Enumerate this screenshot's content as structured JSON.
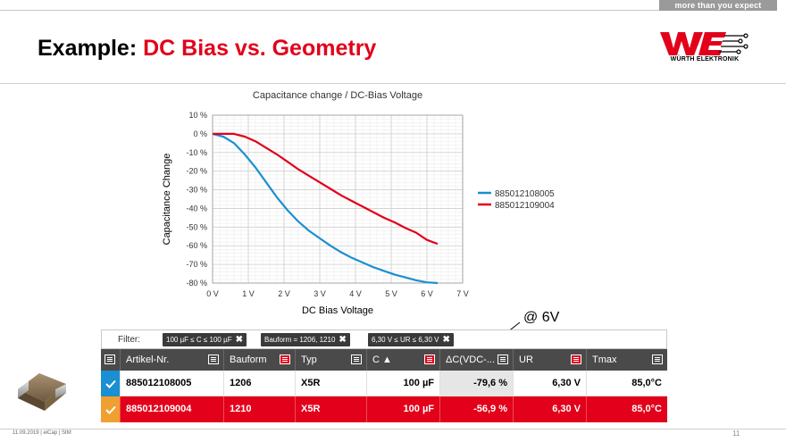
{
  "header": {
    "tagline": "more than you expect",
    "title_prefix": "Example: ",
    "title_accent": "DC Bias vs. Geometry",
    "logo_text": "WÜRTH ELEKTRONIK",
    "accent_color": "#e2001a"
  },
  "chart_data": {
    "type": "line",
    "title": "Capacitance change / DC-Bias Voltage",
    "xlabel": "DC Bias Voltage",
    "ylabel": "Capacitance Change",
    "xlim": [
      0,
      7
    ],
    "ylim": [
      -80,
      10
    ],
    "x_ticks": [
      "0 V",
      "1 V",
      "2 V",
      "3 V",
      "4 V",
      "5 V",
      "6 V",
      "7 V"
    ],
    "y_ticks": [
      "10 %",
      "0 %",
      "-10 %",
      "-20 %",
      "-30 %",
      "-40 %",
      "-50 %",
      "-60 %",
      "-70 %",
      "-80 %"
    ],
    "grid": true,
    "legend_position": "right",
    "series": [
      {
        "name": "885012108005",
        "color": "#1a8fd1",
        "x": [
          0,
          0.3,
          0.6,
          0.9,
          1.2,
          1.5,
          1.8,
          2.1,
          2.4,
          2.7,
          3.0,
          3.3,
          3.6,
          3.9,
          4.2,
          4.5,
          4.8,
          5.1,
          5.4,
          5.7,
          6.0,
          6.3
        ],
        "values": [
          0,
          -1.5,
          -5,
          -11,
          -18,
          -26,
          -34,
          -41,
          -47,
          -52,
          -56,
          -60,
          -63.5,
          -66.5,
          -69,
          -71.5,
          -73.5,
          -75.5,
          -77,
          -78.5,
          -79.6,
          -80
        ]
      },
      {
        "name": "885012109004",
        "color": "#e2001a",
        "x": [
          0,
          0.3,
          0.6,
          0.9,
          1.2,
          1.5,
          1.8,
          2.1,
          2.4,
          2.7,
          3.0,
          3.3,
          3.6,
          3.9,
          4.2,
          4.5,
          4.8,
          5.1,
          5.4,
          5.7,
          6.0,
          6.3
        ],
        "values": [
          0,
          0,
          0,
          -1.5,
          -4,
          -7.5,
          -11,
          -15,
          -19,
          -22.5,
          -26,
          -29.5,
          -33,
          -36,
          -39,
          -42,
          -45,
          -47.5,
          -50.5,
          -53,
          -56.9,
          -59
        ]
      }
    ]
  },
  "annotation": "@ 6V",
  "filter": {
    "label": "Filter:",
    "chips": [
      "100 µF ≤ C ≤ 100 µF",
      "Bauform = 1206, 1210",
      "6,30 V ≤ UR ≤ 6,30 V"
    ]
  },
  "table": {
    "columns": [
      "Artikel-Nr.",
      "Bauform",
      "Typ",
      "C ▲",
      "ΔC(VDC-...",
      "UR",
      "Tmax"
    ],
    "rows": [
      {
        "artikel": "885012108005",
        "bauform": "1206",
        "typ": "X5R",
        "c": "100 µF",
        "dc": "-79,6 %",
        "ur": "6,30 V",
        "tmax": "85,0°C"
      },
      {
        "artikel": "885012109004",
        "bauform": "1210",
        "typ": "X5R",
        "c": "100 µF",
        "dc": "-56,9 %",
        "ur": "6,30 V",
        "tmax": "85,0°C"
      }
    ]
  },
  "footer": {
    "text": "11.09.2019  |  eiCap  |  StM",
    "page": "11"
  }
}
